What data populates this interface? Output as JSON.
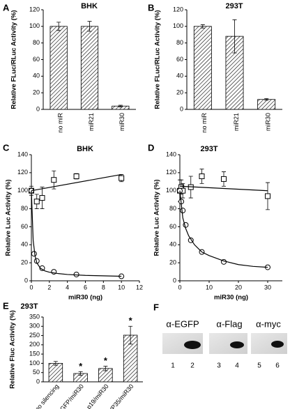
{
  "chart_data": [
    {
      "type": "bar",
      "panel": "A",
      "title": "BHK",
      "y_label": "Relative FLuc/RLuc Activity (%)",
      "categories": [
        "no miR",
        "miR21",
        "miR30"
      ],
      "values": [
        100,
        100,
        4
      ],
      "errors": [
        5,
        6,
        1
      ],
      "ylim": [
        0,
        120
      ],
      "yticks": [
        0,
        20,
        40,
        60,
        80,
        100,
        120
      ],
      "color": "#000000"
    },
    {
      "type": "bar",
      "panel": "B",
      "title": "293T",
      "y_label": "Relative FLuc/RLuc Activity (%)",
      "categories": [
        "no miR",
        "miR21",
        "miR30"
      ],
      "values": [
        100,
        88,
        12
      ],
      "errors": [
        2,
        20,
        1
      ],
      "ylim": [
        0,
        120
      ],
      "yticks": [
        0,
        20,
        40,
        60,
        80,
        100,
        120
      ],
      "color": "#000000"
    },
    {
      "type": "scatter",
      "panel": "C",
      "title": "BHK",
      "y_label": "Relative Luc Activity (%)",
      "x_label": "miR30 (ng)",
      "xlim": [
        0,
        12
      ],
      "xticks": [
        0,
        2,
        4,
        6,
        8,
        10,
        12
      ],
      "ylim": [
        0,
        140
      ],
      "yticks": [
        0,
        20,
        40,
        60,
        80,
        100,
        120,
        140
      ],
      "series": [
        {
          "marker": "square",
          "color": "#000000",
          "x": [
            0,
            0.6,
            1.2,
            2.5,
            5,
            10
          ],
          "values": [
            100,
            88,
            92,
            112,
            116,
            114
          ],
          "errors": [
            5,
            8,
            12,
            10,
            3,
            4
          ]
        },
        {
          "marker": "circle",
          "color": "#000000",
          "x": [
            0,
            0.3,
            0.6,
            1.2,
            2.5,
            5,
            10
          ],
          "values": [
            100,
            30,
            22,
            14,
            10,
            7,
            5
          ]
        },
        {
          "marker": "none",
          "color": "#000000",
          "x": [
            0,
            10
          ],
          "values": [
            100,
            118
          ]
        },
        {
          "marker": "none",
          "color": "#000000",
          "x": [
            0,
            0.2,
            0.4,
            0.6,
            1,
            1.5,
            2,
            3,
            4,
            6,
            8,
            10
          ],
          "values": [
            100,
            45,
            28,
            20,
            14,
            11,
            9.5,
            8,
            7,
            6,
            5.5,
            5
          ]
        }
      ]
    },
    {
      "type": "scatter",
      "panel": "D",
      "title": "293T",
      "y_label": "Relative Luc Activity (%)",
      "x_label": "miR30 (ng)",
      "xlim": [
        0,
        35
      ],
      "xticks": [
        0,
        10,
        20,
        30
      ],
      "ylim": [
        0,
        140
      ],
      "yticks": [
        0,
        20,
        40,
        60,
        80,
        100,
        120,
        140
      ],
      "series": [
        {
          "marker": "square",
          "color": "#000000",
          "x": [
            0,
            0.5,
            1,
            3.75,
            7.5,
            15,
            30
          ],
          "values": [
            100,
            104,
            100,
            104,
            116,
            113,
            94
          ],
          "errors": [
            12,
            8,
            8,
            12,
            8,
            8,
            15
          ]
        },
        {
          "marker": "circle",
          "color": "#000000",
          "x": [
            0,
            0.5,
            1,
            2,
            3.75,
            7.5,
            15,
            30
          ],
          "values": [
            100,
            88,
            78,
            62,
            45,
            32,
            21,
            15
          ]
        },
        {
          "marker": "none",
          "color": "#000000",
          "x": [
            0,
            30
          ],
          "values": [
            105,
            100
          ]
        },
        {
          "marker": "none",
          "color": "#000000",
          "x": [
            0,
            1,
            2,
            3,
            5,
            7.5,
            10,
            15,
            20,
            25,
            30
          ],
          "values": [
            100,
            70,
            58,
            50,
            40,
            32,
            28,
            22,
            18,
            16,
            15
          ]
        }
      ]
    },
    {
      "type": "bar",
      "panel": "E",
      "title": "293T",
      "y_label": "Relative Fluc Activity (%)",
      "categories": [
        "no silencing",
        "EGFP/miR30",
        "p19/miR30",
        "VP35/miR30"
      ],
      "values": [
        100,
        45,
        72,
        252
      ],
      "errors": [
        10,
        10,
        12,
        48
      ],
      "value_annotations": [
        null,
        "*",
        "*",
        "*"
      ],
      "ylim": [
        0,
        350
      ],
      "yticks": [
        0,
        50,
        100,
        150,
        200,
        250,
        300,
        350
      ],
      "color": "#000000"
    }
  ],
  "blot_panel": "F",
  "blots": [
    {
      "label": "α-EGFP",
      "lanes": [
        "1",
        "2"
      ]
    },
    {
      "label": "α-Flag",
      "lanes": [
        "3",
        "4"
      ]
    },
    {
      "label": "α-myc",
      "lanes": [
        "5",
        "6"
      ]
    }
  ]
}
